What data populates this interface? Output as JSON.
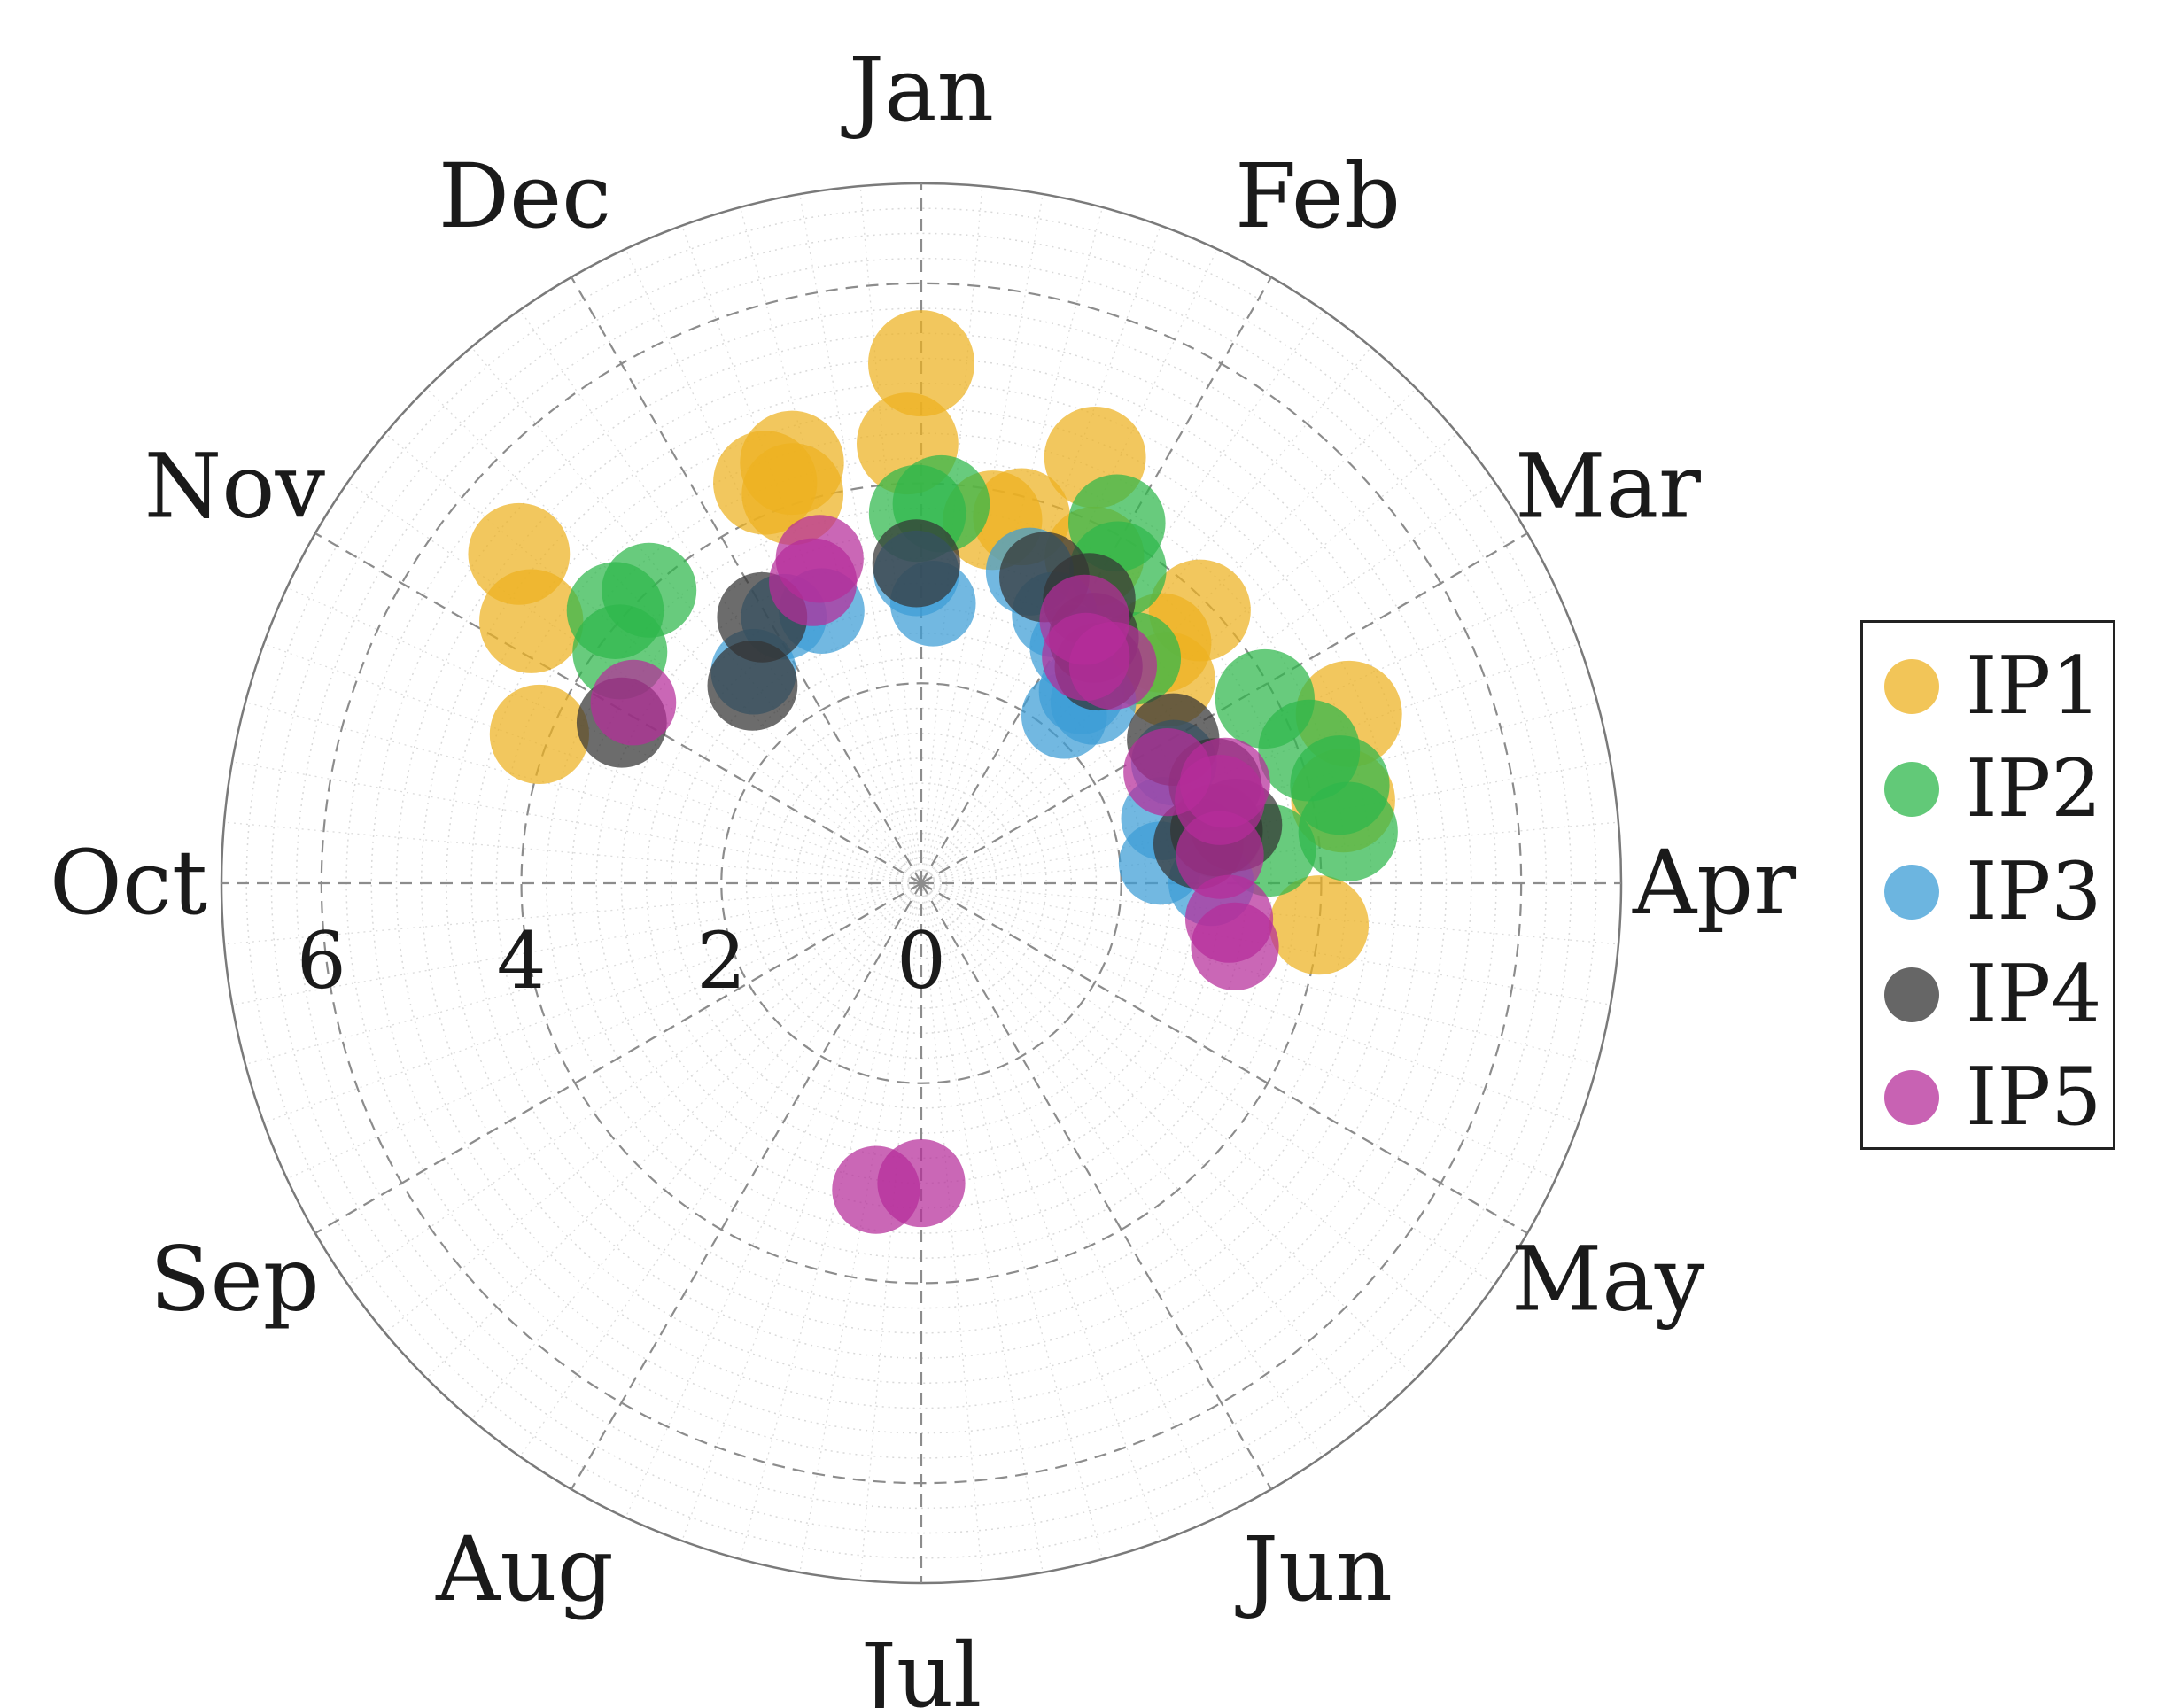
{
  "chart_data": {
    "type": "scatter",
    "polar": true,
    "angular_unit": "month",
    "angular_labels": [
      "Jan",
      "Feb",
      "Mar",
      "Apr",
      "May",
      "Jun",
      "Jul",
      "Aug",
      "Sep",
      "Oct",
      "Nov",
      "Dec"
    ],
    "radial_ticks": [
      "6",
      "4",
      "2",
      "0"
    ],
    "radial_tick_values": [
      6,
      4,
      2,
      0
    ],
    "rlim": [
      0,
      7
    ],
    "grid": true,
    "legend_position": "right",
    "marker_size_encodes": "magnitude",
    "series": [
      {
        "name": "IP1",
        "color": "#EDB120",
        "points": [
          {
            "month": 0.0,
            "r": 5.2,
            "s": 1.0
          },
          {
            "month": -0.06,
            "r": 4.4,
            "s": 0.9
          },
          {
            "month": 0.74,
            "r": 4.6,
            "s": 0.9
          },
          {
            "month": 0.93,
            "r": 3.7,
            "s": 0.85
          },
          {
            "month": -0.71,
            "r": 4.3,
            "s": 0.95
          },
          {
            "month": -0.61,
            "r": 4.1,
            "s": 0.9
          },
          {
            "month": -0.57,
            "r": 4.4,
            "s": 0.95
          },
          {
            "month": 0.37,
            "r": 3.7,
            "s": 0.85
          },
          {
            "month": 0.51,
            "r": 3.8,
            "s": 0.8
          },
          {
            "month": 1.52,
            "r": 3.9,
            "s": 0.9
          },
          {
            "month": 1.5,
            "r": 3.4,
            "s": 0.85
          },
          {
            "month": 1.68,
            "r": 3.2,
            "s": 0.75
          },
          {
            "month": -1.87,
            "r": 4.7,
            "s": 0.95
          },
          {
            "month": -1.69,
            "r": 5.2,
            "s": 0.9
          },
          {
            "month": -2.29,
            "r": 4.1,
            "s": 0.85
          },
          {
            "month": 2.28,
            "r": 4.6,
            "s": 1.0
          },
          {
            "month": 2.63,
            "r": 4.3,
            "s": 0.95
          },
          {
            "month": 3.2,
            "r": 4.0,
            "s": 0.85
          }
        ]
      },
      {
        "name": "IP2",
        "color": "#2EB74B",
        "points": [
          {
            "month": -0.02,
            "r": 3.7,
            "s": 0.8
          },
          {
            "month": 0.1,
            "r": 3.8,
            "s": 0.8
          },
          {
            "month": 0.95,
            "r": 4.1,
            "s": 0.8
          },
          {
            "month": 1.07,
            "r": 3.7,
            "s": 0.8
          },
          {
            "month": 1.45,
            "r": 3.1,
            "s": 0.7
          },
          {
            "month": -1.43,
            "r": 4.0,
            "s": 0.75
          },
          {
            "month": -1.61,
            "r": 4.1,
            "s": 0.8
          },
          {
            "month": -1.75,
            "r": 3.8,
            "s": 0.75
          },
          {
            "month": 2.06,
            "r": 3.9,
            "s": 0.85
          },
          {
            "month": 2.37,
            "r": 4.1,
            "s": 0.9
          },
          {
            "month": 2.56,
            "r": 4.3,
            "s": 0.85
          },
          {
            "month": 2.77,
            "r": 4.3,
            "s": 0.85
          },
          {
            "month": 2.82,
            "r": 3.5,
            "s": 0.7
          },
          {
            "month": 2.67,
            "r": 3.0,
            "s": 0.7
          }
        ]
      },
      {
        "name": "IP3",
        "color": "#3B9CD6",
        "points": [
          {
            "month": -0.03,
            "r": 3.1,
            "s": 0.55
          },
          {
            "month": 0.08,
            "r": 2.8,
            "s": 0.55
          },
          {
            "month": 0.64,
            "r": 3.3,
            "s": 0.6
          },
          {
            "month": 0.88,
            "r": 3.0,
            "s": 0.55
          },
          {
            "month": 1.09,
            "r": 2.8,
            "s": 0.55
          },
          {
            "month": 1.33,
            "r": 2.5,
            "s": 0.55
          },
          {
            "month": 1.45,
            "r": 2.5,
            "s": 0.55
          },
          {
            "month": 1.35,
            "r": 2.2,
            "s": 0.55
          },
          {
            "month": -0.67,
            "r": 2.9,
            "s": 0.55
          },
          {
            "month": -0.91,
            "r": 3.0,
            "s": 0.55
          },
          {
            "month": -1.28,
            "r": 2.7,
            "s": 0.55
          },
          {
            "month": 2.15,
            "r": 2.8,
            "s": 0.55
          },
          {
            "month": 2.5,
            "r": 2.5,
            "s": 0.5
          },
          {
            "month": 2.84,
            "r": 2.4,
            "s": 0.5
          },
          {
            "month": 3.0,
            "r": 2.9,
            "s": 0.55
          }
        ]
      },
      {
        "name": "IP4",
        "color": "#333333",
        "points": [
          {
            "month": -0.03,
            "r": 3.2,
            "s": 0.6
          },
          {
            "month": 0.73,
            "r": 3.3,
            "s": 0.65
          },
          {
            "month": 1.02,
            "r": 3.3,
            "s": 0.7
          },
          {
            "month": 1.17,
            "r": 3.0,
            "s": 0.65
          },
          {
            "month": 1.31,
            "r": 2.8,
            "s": 0.6
          },
          {
            "month": -1.03,
            "r": 3.1,
            "s": 0.65
          },
          {
            "month": -1.35,
            "r": 2.6,
            "s": 0.65
          },
          {
            "month": -2.06,
            "r": 3.4,
            "s": 0.65
          },
          {
            "month": 2.01,
            "r": 2.9,
            "s": 0.7
          },
          {
            "month": 2.38,
            "r": 3.1,
            "s": 0.7
          },
          {
            "month": 2.65,
            "r": 3.2,
            "s": 0.7
          },
          {
            "month": 2.66,
            "r": 3.0,
            "s": 0.7
          },
          {
            "month": 2.73,
            "r": 2.8,
            "s": 0.65
          }
        ]
      },
      {
        "name": "IP5",
        "color": "#B52D9A",
        "points": [
          {
            "month": -0.58,
            "r": 3.4,
            "s": 0.6
          },
          {
            "month": -0.66,
            "r": 3.2,
            "s": 0.6
          },
          {
            "month": 1.06,
            "r": 3.1,
            "s": 0.65
          },
          {
            "month": 1.2,
            "r": 2.8,
            "s": 0.6
          },
          {
            "month": 1.38,
            "r": 2.9,
            "s": 0.6
          },
          {
            "month": -1.93,
            "r": 3.4,
            "s": 0.55
          },
          {
            "month": 2.19,
            "r": 2.7,
            "s": 0.6
          },
          {
            "month": 2.39,
            "r": 3.2,
            "s": 0.65
          },
          {
            "month": 2.48,
            "r": 3.1,
            "s": 0.65
          },
          {
            "month": 2.82,
            "r": 3.0,
            "s": 0.6
          },
          {
            "month": 3.22,
            "r": 3.1,
            "s": 0.6
          },
          {
            "month": 3.38,
            "r": 3.2,
            "s": 0.6
          },
          {
            "month": 6.0,
            "r": 3.0,
            "s": 0.6
          },
          {
            "month": 6.28,
            "r": 3.1,
            "s": 0.6
          }
        ]
      }
    ]
  },
  "legend": {
    "items": [
      {
        "label": "IP1",
        "color": "#EDB120"
      },
      {
        "label": "IP2",
        "color": "#2EB74B"
      },
      {
        "label": "IP3",
        "color": "#3B9CD6"
      },
      {
        "label": "IP4",
        "color": "#333333"
      },
      {
        "label": "IP5",
        "color": "#B52D9A"
      }
    ]
  }
}
